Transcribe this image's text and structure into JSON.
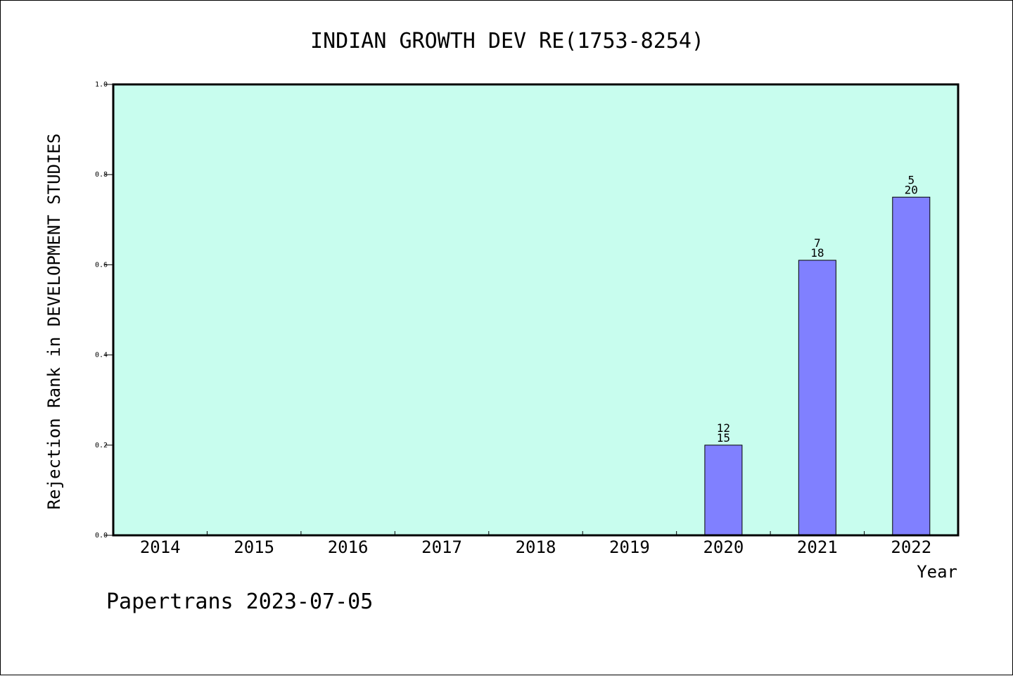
{
  "chart_data": {
    "type": "bar",
    "title": "INDIAN GROWTH DEV RE(1753-8254)",
    "xlabel": "Year",
    "ylabel": "Rejection Rank in DEVELOPMENT STUDIES",
    "categories": [
      "2014",
      "2015",
      "2016",
      "2017",
      "2018",
      "2019",
      "2020",
      "2021",
      "2022"
    ],
    "values": [
      null,
      null,
      null,
      null,
      null,
      null,
      0.2,
      0.61,
      0.75
    ],
    "bar_labels": [
      null,
      null,
      null,
      null,
      null,
      null,
      {
        "top": "12",
        "bottom": "15"
      },
      {
        "top": "7",
        "bottom": "18"
      },
      {
        "top": "5",
        "bottom": "20"
      }
    ],
    "ylim": [
      0,
      1.0
    ],
    "yticks": [
      "0.0",
      "0.2",
      "0.4",
      "0.6",
      "0.8",
      "1.0"
    ],
    "grid": false,
    "plot_background": "#c8fdee",
    "bar_color": "#8080ff"
  },
  "footer": {
    "credit": "Papertrans 2023-07-05"
  }
}
